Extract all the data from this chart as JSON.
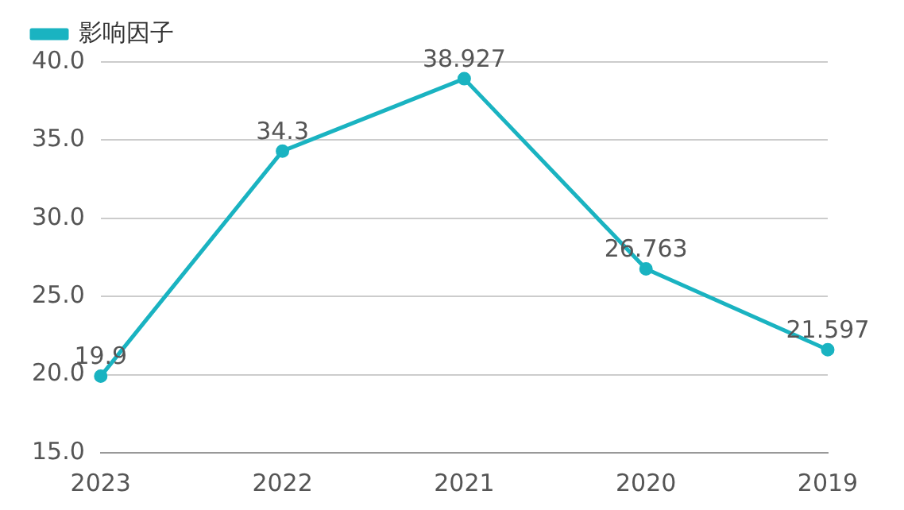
{
  "chart_data": {
    "type": "line",
    "categories": [
      "2023",
      "2022",
      "2021",
      "2020",
      "2019"
    ],
    "series": [
      {
        "name": "影响因子",
        "color": "#1ab3c1",
        "values": [
          19.9,
          34.3,
          38.927,
          26.763,
          21.597
        ]
      }
    ],
    "ylim": [
      15,
      40
    ],
    "yticks": [
      {
        "value": 15,
        "label": "15.0"
      },
      {
        "value": 20,
        "label": "20.0"
      },
      {
        "value": 25,
        "label": "25.0"
      },
      {
        "value": 30,
        "label": "30.0"
      },
      {
        "value": 35,
        "label": "35.0"
      },
      {
        "value": 40,
        "label": "40.0"
      }
    ],
    "grid": "y",
    "legend": "top left",
    "marker": "circle",
    "data_labels": true
  }
}
